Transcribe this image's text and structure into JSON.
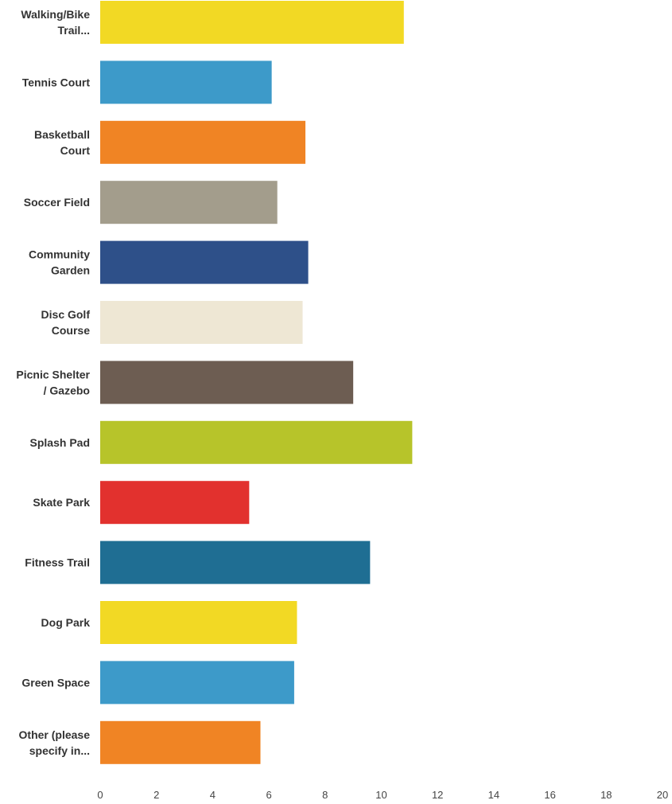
{
  "chart_data": {
    "type": "bar",
    "orientation": "horizontal",
    "title": "",
    "xlabel": "",
    "ylabel": "",
    "xlim": [
      0,
      20
    ],
    "grid": false,
    "legend": "none",
    "categories": [
      [
        "Walking/Bike",
        "Trail..."
      ],
      [
        "Tennis Court"
      ],
      [
        "Basketball",
        "Court"
      ],
      [
        "Soccer Field"
      ],
      [
        "Community",
        "Garden"
      ],
      [
        "Disc Golf",
        "Course"
      ],
      [
        "Picnic Shelter",
        "/ Gazebo"
      ],
      [
        "Splash Pad"
      ],
      [
        "Skate Park"
      ],
      [
        "Fitness Trail"
      ],
      [
        "Dog Park"
      ],
      [
        "Green Space"
      ],
      [
        "Other (please",
        "specify in..."
      ]
    ],
    "values": [
      10.8,
      6.1,
      7.3,
      6.3,
      7.4,
      7.2,
      9.0,
      11.1,
      5.3,
      9.6,
      7.0,
      6.9,
      5.7
    ],
    "colors": [
      "#f2d924",
      "#3d9ac9",
      "#f08424",
      "#a39d8c",
      "#2e5089",
      "#eee7d4",
      "#6d5d52",
      "#b7c42a",
      "#e2312e",
      "#1f6e93",
      "#f2d924",
      "#3d9ac9",
      "#f08424"
    ],
    "x_ticks": [
      "0",
      "2",
      "4",
      "6",
      "8",
      "10",
      "12",
      "14",
      "16",
      "18",
      "20"
    ]
  }
}
